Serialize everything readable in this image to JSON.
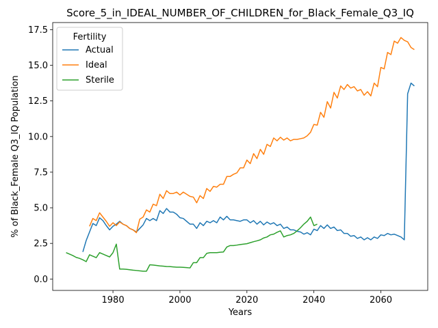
{
  "chart_data": {
    "type": "line",
    "title": "Score_5_in_IDEAL_NUMBER_OF_CHILDREN_for_Black_Female_Q3_IQ",
    "xlabel": "Years",
    "ylabel": "% of Black_Female Q3_IQ Population",
    "xlim": [
      1962,
      2074
    ],
    "ylim": [
      -0.8,
      18
    ],
    "xticks": [
      1980,
      2000,
      2020,
      2040,
      2060
    ],
    "yticks": [
      0.0,
      2.5,
      5.0,
      7.5,
      10.0,
      12.5,
      15.0,
      17.5
    ],
    "xtick_labels": [
      "1980",
      "2000",
      "2020",
      "2040",
      "2060"
    ],
    "ytick_labels": [
      "0.0",
      "2.5",
      "5.0",
      "7.5",
      "10.0",
      "12.5",
      "15.0",
      "17.5"
    ],
    "grid": false,
    "legend": {
      "title": "Fertility",
      "position": "top-left"
    },
    "series": [
      {
        "name": "Actual",
        "color": "#1f77b4",
        "x": [
          1971,
          1972,
          1973,
          1974,
          1975,
          1976,
          1977,
          1978,
          1979,
          1980,
          1981,
          1982,
          1983,
          1984,
          1985,
          1986,
          1987,
          1988,
          1989,
          1990,
          1991,
          1992,
          1993,
          1994,
          1995,
          1996,
          1997,
          1998,
          1999,
          2000,
          2001,
          2002,
          2003,
          2004,
          2005,
          2006,
          2007,
          2008,
          2009,
          2010,
          2011,
          2012,
          2013,
          2014,
          2015,
          2016,
          2017,
          2018,
          2019,
          2020,
          2021,
          2022,
          2023,
          2024,
          2025,
          2026,
          2027,
          2028,
          2029,
          2030,
          2031,
          2032,
          2033,
          2034,
          2035,
          2036,
          2037,
          2038,
          2039,
          2040,
          2041,
          2042,
          2043,
          2044,
          2045,
          2046,
          2047,
          2048,
          2049,
          2050,
          2051,
          2052,
          2053,
          2054,
          2055,
          2056,
          2057,
          2058,
          2059,
          2060,
          2061,
          2062,
          2063,
          2064,
          2065,
          2066,
          2067,
          2068,
          2069,
          2070
        ],
        "values": [
          1.9,
          2.7,
          3.3,
          3.9,
          3.75,
          4.3,
          4.1,
          3.75,
          3.45,
          3.7,
          3.85,
          4.05,
          3.85,
          3.75,
          3.55,
          3.45,
          3.3,
          3.55,
          3.8,
          4.25,
          4.1,
          4.25,
          4.1,
          4.8,
          4.6,
          4.95,
          4.7,
          4.7,
          4.55,
          4.3,
          4.25,
          4.05,
          3.85,
          3.85,
          3.55,
          3.95,
          3.75,
          4.05,
          3.95,
          4.1,
          3.95,
          4.35,
          4.15,
          4.4,
          4.15,
          4.15,
          4.1,
          4.05,
          4.15,
          4.15,
          3.95,
          4.1,
          3.85,
          4.05,
          3.8,
          4.0,
          3.85,
          3.95,
          3.75,
          3.85,
          3.55,
          3.65,
          3.45,
          3.45,
          3.35,
          3.3,
          3.15,
          3.25,
          3.1,
          3.5,
          3.4,
          3.75,
          3.55,
          3.8,
          3.55,
          3.65,
          3.4,
          3.45,
          3.2,
          3.2,
          3.0,
          3.05,
          2.85,
          2.95,
          2.75,
          2.9,
          2.75,
          2.95,
          2.85,
          3.1,
          3.05,
          3.2,
          3.1,
          3.15,
          3.05,
          2.95,
          2.75,
          13.0,
          13.75,
          13.55
        ]
      },
      {
        "name": "Ideal",
        "color": "#ff7f0e",
        "x": [
          1973,
          1974,
          1975,
          1976,
          1977,
          1978,
          1979,
          1980,
          1981,
          1982,
          1983,
          1984,
          1985,
          1986,
          1987,
          1988,
          1989,
          1990,
          1991,
          1992,
          1993,
          1994,
          1995,
          1996,
          1997,
          1998,
          1999,
          2000,
          2001,
          2002,
          2003,
          2004,
          2005,
          2006,
          2007,
          2008,
          2009,
          2010,
          2011,
          2012,
          2013,
          2014,
          2015,
          2016,
          2017,
          2018,
          2019,
          2020,
          2021,
          2022,
          2023,
          2024,
          2025,
          2026,
          2027,
          2028,
          2029,
          2030,
          2031,
          2032,
          2033,
          2034,
          2035,
          2036,
          2037,
          2038,
          2039,
          2040,
          2041,
          2042,
          2043,
          2044,
          2045,
          2046,
          2047,
          2048,
          2049,
          2050,
          2051,
          2052,
          2053,
          2054,
          2055,
          2056,
          2057,
          2058,
          2059,
          2060,
          2061,
          2062,
          2063,
          2064,
          2065,
          2066,
          2067,
          2068,
          2069,
          2070
        ],
        "values": [
          3.7,
          4.25,
          4.1,
          4.65,
          4.35,
          4.05,
          3.7,
          3.95,
          3.75,
          4.0,
          3.85,
          3.75,
          3.55,
          3.45,
          3.25,
          4.2,
          4.35,
          4.85,
          4.7,
          5.25,
          5.15,
          5.95,
          5.65,
          6.2,
          6.0,
          6.0,
          6.1,
          5.9,
          6.1,
          5.95,
          5.8,
          5.75,
          5.35,
          5.85,
          5.65,
          6.35,
          6.15,
          6.5,
          6.45,
          6.65,
          6.65,
          7.2,
          7.2,
          7.35,
          7.45,
          7.8,
          7.8,
          8.35,
          8.1,
          8.8,
          8.45,
          9.1,
          8.75,
          9.45,
          9.3,
          9.9,
          9.7,
          9.95,
          9.75,
          9.9,
          9.7,
          9.8,
          9.8,
          9.85,
          9.9,
          10.05,
          10.3,
          10.85,
          10.8,
          11.7,
          11.35,
          12.45,
          12.0,
          13.1,
          12.7,
          13.55,
          13.3,
          13.65,
          13.4,
          13.5,
          13.2,
          13.3,
          12.9,
          13.15,
          12.85,
          13.75,
          13.5,
          14.85,
          14.75,
          15.9,
          15.75,
          16.7,
          16.55,
          16.95,
          16.75,
          16.65,
          16.25,
          16.1
        ]
      },
      {
        "name": "Sterile",
        "color": "#2ca02c",
        "x": [
          1966,
          1967,
          1968,
          1969,
          1970,
          1971,
          1972,
          1973,
          1974,
          1975,
          1976,
          1977,
          1978,
          1979,
          1980,
          1981,
          1982,
          1983,
          1984,
          1985,
          1986,
          1987,
          1988,
          1989,
          1990,
          1991,
          1992,
          1993,
          1994,
          1995,
          1996,
          1997,
          1998,
          1999,
          2000,
          2001,
          2002,
          2003,
          2004,
          2005,
          2006,
          2007,
          2008,
          2009,
          2010,
          2011,
          2012,
          2013,
          2014,
          2015,
          2016,
          2017,
          2018,
          2019,
          2020,
          2021,
          2022,
          2023,
          2024,
          2025,
          2026,
          2027,
          2028,
          2029,
          2030,
          2031,
          2032,
          2033,
          2034,
          2035,
          2036,
          2037,
          2038,
          2039,
          2040,
          2041
        ],
        "values": [
          1.85,
          1.75,
          1.65,
          1.52,
          1.45,
          1.35,
          1.22,
          1.7,
          1.6,
          1.5,
          1.85,
          1.75,
          1.65,
          1.55,
          1.85,
          2.45,
          0.7,
          0.7,
          0.68,
          0.65,
          0.62,
          0.6,
          0.57,
          0.55,
          0.55,
          1.0,
          0.98,
          0.95,
          0.92,
          0.9,
          0.88,
          0.87,
          0.85,
          0.83,
          0.83,
          0.82,
          0.8,
          0.78,
          1.15,
          1.15,
          1.5,
          1.5,
          1.8,
          1.85,
          1.85,
          1.85,
          1.88,
          1.9,
          2.25,
          2.35,
          2.35,
          2.38,
          2.42,
          2.45,
          2.48,
          2.55,
          2.62,
          2.68,
          2.75,
          2.88,
          2.95,
          3.1,
          3.15,
          3.28,
          3.38,
          2.95,
          3.05,
          3.1,
          3.2,
          3.38,
          3.6,
          3.85,
          4.05,
          4.35,
          3.75,
          3.85
        ]
      }
    ]
  }
}
